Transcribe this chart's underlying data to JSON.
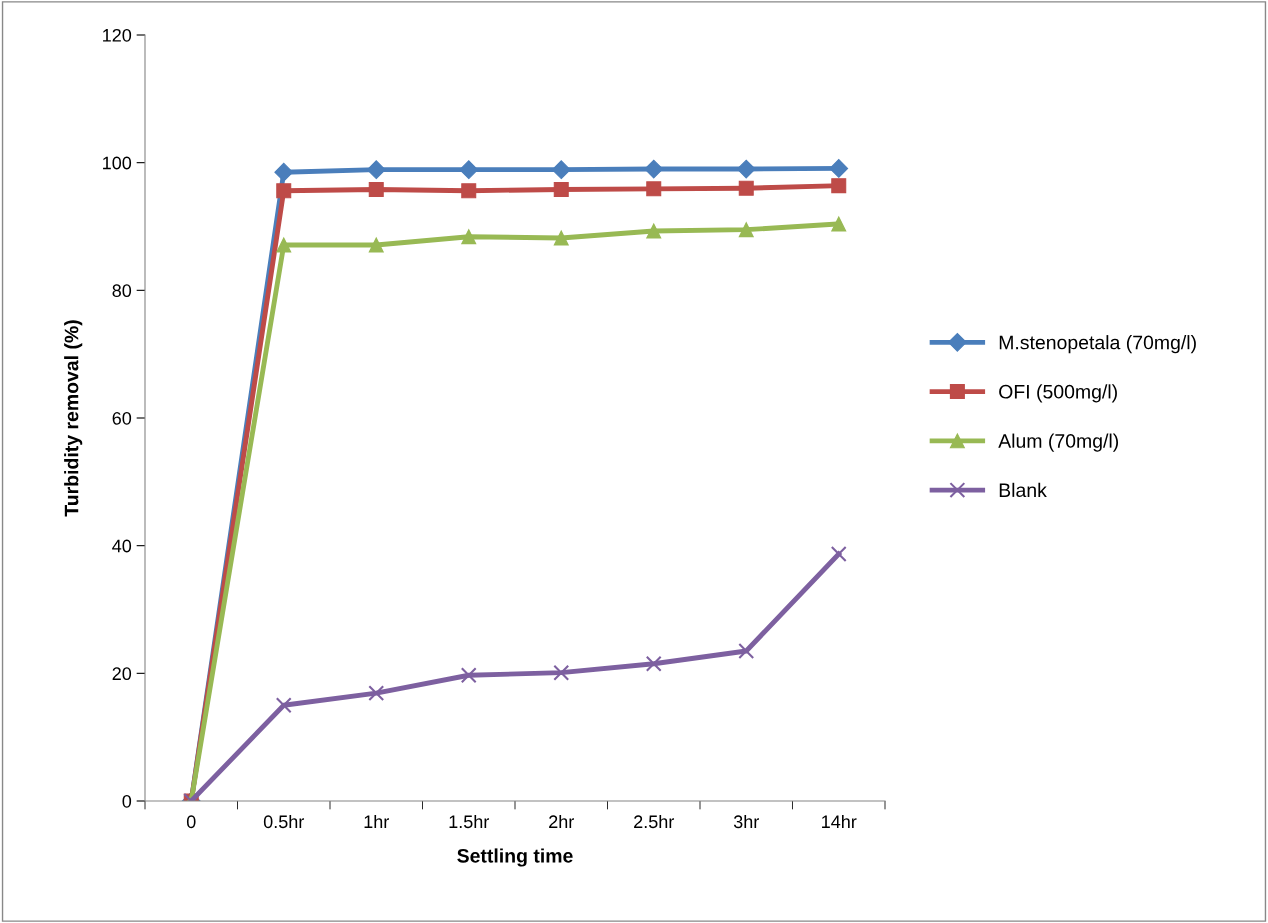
{
  "chart_data": {
    "type": "line",
    "xlabel": "Settling time",
    "ylabel": "Turbidity removal (%)",
    "categories": [
      "0",
      "0.5hr",
      "1hr",
      "1.5hr",
      "2hr",
      "2.5hr",
      "3hr",
      "14hr"
    ],
    "series": [
      {
        "name": "M.stenopetala (70mg/l)",
        "color": "#4a7ebb",
        "marker": "diamond",
        "values": [
          0,
          98.5,
          98.9,
          98.9,
          98.9,
          99.0,
          99.0,
          99.1
        ]
      },
      {
        "name": "OFI (500mg/l)",
        "color": "#be4b48",
        "marker": "square",
        "values": [
          0,
          95.6,
          95.8,
          95.6,
          95.8,
          95.9,
          96.0,
          96.4
        ]
      },
      {
        "name": "Alum (70mg/l)",
        "color": "#98b954",
        "marker": "triangle",
        "values": [
          0,
          87.1,
          87.1,
          88.4,
          88.2,
          89.3,
          89.5,
          90.4
        ]
      },
      {
        "name": "Blank",
        "color": "#7d60a0",
        "marker": "cross",
        "values": [
          0,
          15.0,
          16.9,
          19.7,
          20.1,
          21.5,
          23.5,
          38.7
        ]
      }
    ],
    "ylim": [
      0,
      120
    ],
    "yticks": [
      0,
      20,
      40,
      60,
      80,
      100,
      120
    ],
    "grid": false,
    "legend": "right"
  }
}
